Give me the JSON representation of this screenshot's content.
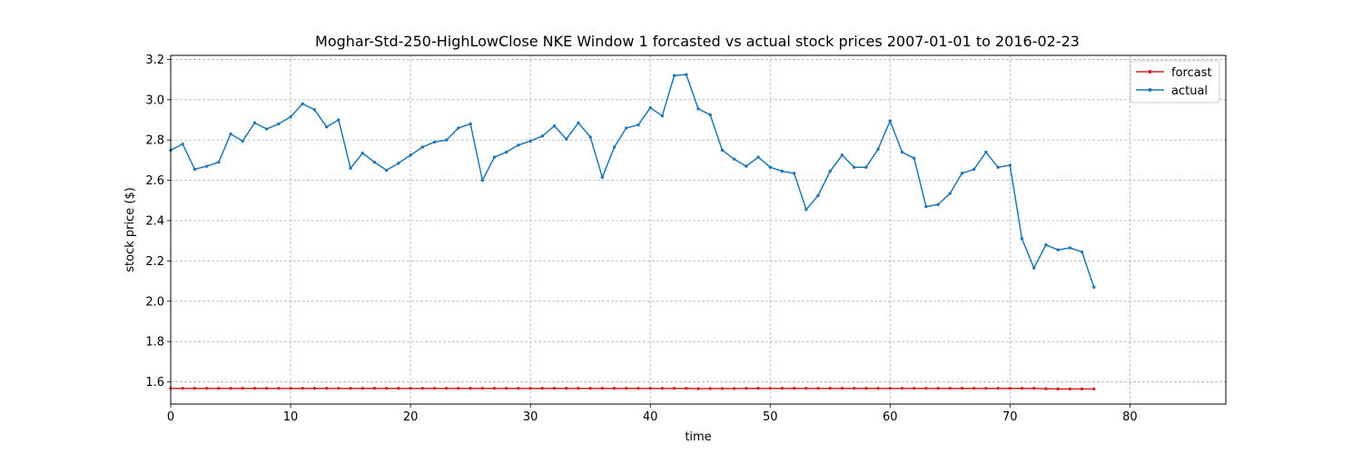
{
  "chart_data": {
    "type": "line",
    "title": "Moghar-Std-250-HighLowClose NKE Window 1 forcasted vs actual stock prices 2007-01-01 to 2016-02-23",
    "xlabel": "time",
    "ylabel": "stock price ($)",
    "xlim": [
      0,
      88
    ],
    "ylim": [
      1.49,
      3.22
    ],
    "xticks": [
      0,
      10,
      20,
      30,
      40,
      50,
      60,
      70,
      80
    ],
    "yticks": [
      1.6,
      1.8,
      2.0,
      2.2,
      2.4,
      2.6,
      2.8,
      3.0,
      3.2
    ],
    "xtick_labels": [
      "0",
      "10",
      "20",
      "30",
      "40",
      "50",
      "60",
      "70",
      "80"
    ],
    "ytick_labels": [
      "1.6",
      "1.8",
      "2.0",
      "2.2",
      "2.4",
      "2.6",
      "2.8",
      "3.0",
      "3.2"
    ],
    "grid": true,
    "legend_position": "top-right",
    "series": [
      {
        "name": "forcast",
        "color": "#d62728",
        "values": [
          1.568,
          1.568,
          1.568,
          1.568,
          1.568,
          1.568,
          1.568,
          1.568,
          1.568,
          1.568,
          1.568,
          1.568,
          1.568,
          1.568,
          1.568,
          1.568,
          1.568,
          1.568,
          1.568,
          1.568,
          1.568,
          1.568,
          1.568,
          1.568,
          1.568,
          1.568,
          1.568,
          1.568,
          1.568,
          1.568,
          1.568,
          1.568,
          1.568,
          1.568,
          1.568,
          1.568,
          1.568,
          1.568,
          1.568,
          1.568,
          1.568,
          1.568,
          1.568,
          1.568,
          1.566,
          1.567,
          1.567,
          1.567,
          1.568,
          1.568,
          1.568,
          1.568,
          1.568,
          1.568,
          1.568,
          1.568,
          1.568,
          1.568,
          1.568,
          1.568,
          1.568,
          1.568,
          1.568,
          1.568,
          1.568,
          1.568,
          1.568,
          1.568,
          1.568,
          1.568,
          1.568,
          1.568,
          1.568,
          1.566,
          1.565,
          1.565,
          1.565,
          1.565
        ]
      },
      {
        "name": "actual",
        "color": "#1f77b4",
        "values": [
          2.75,
          2.78,
          2.655,
          2.67,
          2.69,
          2.83,
          2.795,
          2.885,
          2.855,
          2.88,
          2.915,
          2.98,
          2.95,
          2.865,
          2.9,
          2.66,
          2.735,
          2.69,
          2.65,
          2.685,
          2.725,
          2.765,
          2.79,
          2.8,
          2.86,
          2.88,
          2.6,
          2.715,
          2.74,
          2.775,
          2.795,
          2.82,
          2.87,
          2.805,
          2.885,
          2.815,
          2.615,
          2.765,
          2.86,
          2.875,
          2.96,
          2.92,
          3.12,
          3.125,
          2.955,
          2.925,
          2.75,
          2.705,
          2.67,
          2.715,
          2.665,
          2.645,
          2.635,
          2.455,
          2.525,
          2.645,
          2.725,
          2.665,
          2.665,
          2.755,
          2.895,
          2.74,
          2.71,
          2.47,
          2.48,
          2.535,
          2.635,
          2.655,
          2.74,
          2.665,
          2.675,
          2.31,
          2.165,
          2.28,
          2.255,
          2.265,
          2.245,
          2.07
        ]
      }
    ]
  }
}
